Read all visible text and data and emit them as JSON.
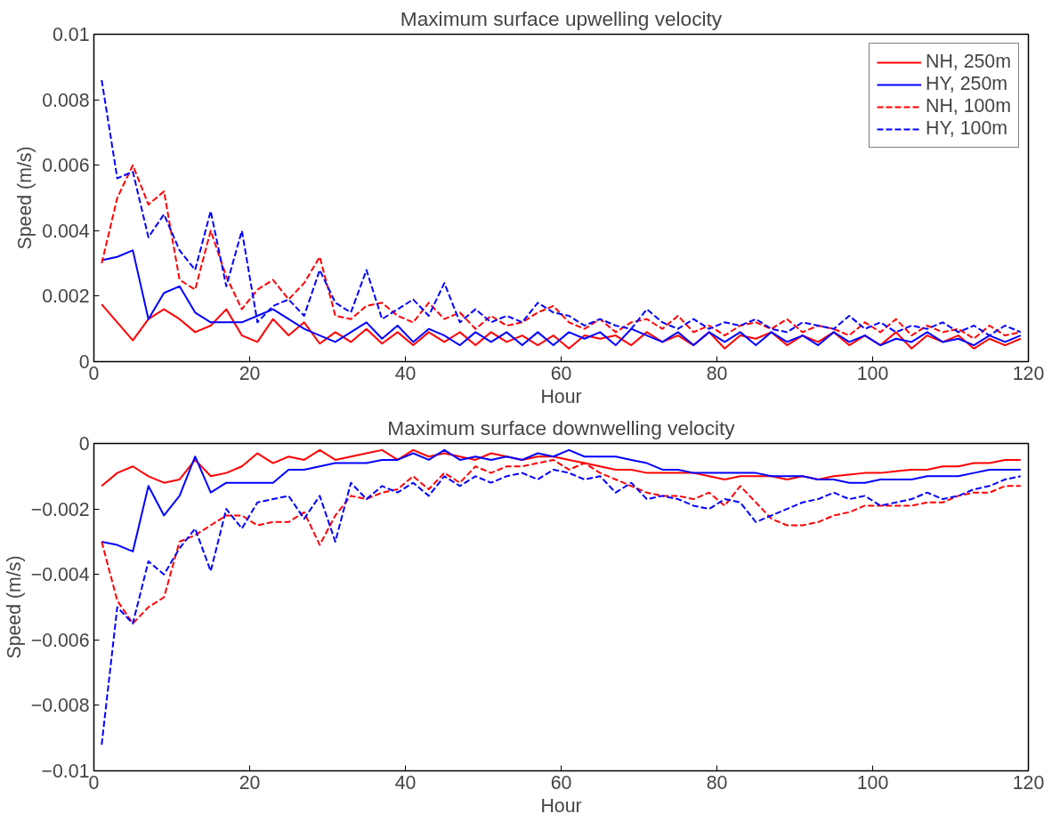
{
  "chart_data": [
    {
      "type": "line",
      "title": "Maximum surface upwelling velocity",
      "xlabel": "Hour",
      "ylabel": "Speed (m/s)",
      "x": [
        1,
        3,
        5,
        7,
        9,
        11,
        13,
        15,
        17,
        19,
        21,
        23,
        25,
        27,
        29,
        31,
        33,
        35,
        37,
        39,
        41,
        43,
        45,
        47,
        49,
        51,
        53,
        55,
        57,
        59,
        61,
        63,
        65,
        67,
        69,
        71,
        73,
        75,
        77,
        79,
        81,
        83,
        85,
        87,
        89,
        91,
        93,
        95,
        97,
        99,
        101,
        103,
        105,
        107,
        109,
        111,
        113,
        115,
        117,
        119
      ],
      "xlim": [
        0,
        120
      ],
      "xticks": [
        0,
        20,
        40,
        60,
        80,
        100,
        120
      ],
      "ylim": [
        0,
        0.01
      ],
      "yticks": [
        0,
        0.002,
        0.004,
        0.006,
        0.008,
        0.01
      ],
      "grid": false,
      "legend": "top right",
      "series": [
        {
          "name": "NH, 250m",
          "color": "#ff0000",
          "line_style": "solid",
          "values": [
            0.00175,
            0.0012,
            0.00065,
            0.0013,
            0.0016,
            0.0013,
            0.0009,
            0.0011,
            0.0016,
            0.0008,
            0.0006,
            0.0013,
            0.0008,
            0.0012,
            0.00055,
            0.0009,
            0.0006,
            0.001,
            0.00055,
            0.0009,
            0.0005,
            0.0009,
            0.0006,
            0.0009,
            0.0005,
            0.0009,
            0.0006,
            0.0008,
            0.0005,
            0.0008,
            0.0004,
            0.0008,
            0.0007,
            0.0008,
            0.0005,
            0.0009,
            0.0006,
            0.0008,
            0.0005,
            0.0009,
            0.0004,
            0.0008,
            0.0007,
            0.0009,
            0.0005,
            0.0008,
            0.0006,
            0.0009,
            0.0005,
            0.0008,
            0.0005,
            0.0009,
            0.0004,
            0.0008,
            0.0006,
            0.0008,
            0.0004,
            0.0007,
            0.0005,
            0.0007
          ]
        },
        {
          "name": "HY, 250m",
          "color": "#0000ff",
          "line_style": "solid",
          "values": [
            0.0031,
            0.0032,
            0.0034,
            0.0013,
            0.0021,
            0.0023,
            0.0015,
            0.0012,
            0.0012,
            0.0012,
            0.0014,
            0.0016,
            0.0013,
            0.001,
            0.0008,
            0.0006,
            0.0009,
            0.0012,
            0.0007,
            0.0011,
            0.0006,
            0.001,
            0.0008,
            0.0005,
            0.0009,
            0.0006,
            0.0009,
            0.0005,
            0.0009,
            0.0005,
            0.0009,
            0.0007,
            0.0009,
            0.0005,
            0.001,
            0.0008,
            0.0006,
            0.0009,
            0.0005,
            0.0009,
            0.0006,
            0.0009,
            0.0005,
            0.0009,
            0.0006,
            0.0008,
            0.0005,
            0.0009,
            0.0006,
            0.0008,
            0.0005,
            0.0007,
            0.0006,
            0.0009,
            0.0006,
            0.0007,
            0.0005,
            0.0008,
            0.0006,
            0.0008
          ]
        },
        {
          "name": "NH, 100m",
          "color": "#ff0000",
          "line_style": "dashed",
          "values": [
            0.003,
            0.005,
            0.006,
            0.0048,
            0.0052,
            0.0025,
            0.0022,
            0.004,
            0.0026,
            0.0016,
            0.0022,
            0.0025,
            0.0019,
            0.0024,
            0.0032,
            0.0014,
            0.0013,
            0.0017,
            0.0018,
            0.0014,
            0.0012,
            0.0018,
            0.0013,
            0.0015,
            0.001,
            0.0014,
            0.0011,
            0.0012,
            0.0015,
            0.0017,
            0.0012,
            0.001,
            0.0013,
            0.0009,
            0.0012,
            0.0013,
            0.001,
            0.0014,
            0.0009,
            0.0011,
            0.0008,
            0.0011,
            0.0012,
            0.001,
            0.0013,
            0.0009,
            0.0011,
            0.001,
            0.0008,
            0.0012,
            0.0009,
            0.0013,
            0.0008,
            0.0011,
            0.0009,
            0.001,
            0.0007,
            0.0011,
            0.0008,
            0.0009
          ]
        },
        {
          "name": "HY, 100m",
          "color": "#0000ff",
          "line_style": "dashed",
          "values": [
            0.0086,
            0.0056,
            0.0058,
            0.0038,
            0.0045,
            0.0034,
            0.0028,
            0.0046,
            0.0023,
            0.004,
            0.0012,
            0.0017,
            0.0019,
            0.0014,
            0.0028,
            0.0018,
            0.0015,
            0.0028,
            0.0013,
            0.0016,
            0.0019,
            0.0014,
            0.0024,
            0.0012,
            0.0016,
            0.0012,
            0.0014,
            0.0012,
            0.0018,
            0.0015,
            0.0014,
            0.0011,
            0.0013,
            0.0011,
            0.001,
            0.0016,
            0.0012,
            0.001,
            0.0013,
            0.001,
            0.0012,
            0.0011,
            0.0013,
            0.001,
            0.0009,
            0.0012,
            0.0011,
            0.001,
            0.0014,
            0.001,
            0.0012,
            0.0009,
            0.0011,
            0.001,
            0.0012,
            0.0009,
            0.0011,
            0.0008,
            0.0011,
            0.0009
          ]
        }
      ]
    },
    {
      "type": "line",
      "title": "Maximum surface downwelling velocity",
      "xlabel": "Hour",
      "ylabel": "Speed (m/s)",
      "x": [
        1,
        3,
        5,
        7,
        9,
        11,
        13,
        15,
        17,
        19,
        21,
        23,
        25,
        27,
        29,
        31,
        33,
        35,
        37,
        39,
        41,
        43,
        45,
        47,
        49,
        51,
        53,
        55,
        57,
        59,
        61,
        63,
        65,
        67,
        69,
        71,
        73,
        75,
        77,
        79,
        81,
        83,
        85,
        87,
        89,
        91,
        93,
        95,
        97,
        99,
        101,
        103,
        105,
        107,
        109,
        111,
        113,
        115,
        117,
        119
      ],
      "xlim": [
        0,
        120
      ],
      "xticks": [
        0,
        20,
        40,
        60,
        80,
        100,
        120
      ],
      "ylim": [
        -0.01,
        0
      ],
      "yticks": [
        {
          "value": -0.01,
          "label": "−0.01"
        },
        {
          "value": -0.008,
          "label": "−0.008"
        },
        {
          "value": -0.006,
          "label": "−0.006"
        },
        {
          "value": -0.004,
          "label": "−0.004"
        },
        {
          "value": -0.002,
          "label": "−0.002"
        },
        0
      ],
      "grid": false,
      "series": [
        {
          "color": "#ff0000",
          "line_style": "solid",
          "values": [
            -0.0013,
            -0.0009,
            -0.0007,
            -0.001,
            -0.0012,
            -0.0011,
            -0.0005,
            -0.001,
            -0.0009,
            -0.0007,
            -0.0003,
            -0.0006,
            -0.0004,
            -0.0005,
            -0.0002,
            -0.0005,
            -0.0004,
            -0.0003,
            -0.0002,
            -0.0005,
            -0.0002,
            -0.0004,
            -0.0003,
            -0.0004,
            -0.0005,
            -0.0003,
            -0.0004,
            -0.0005,
            -0.0004,
            -0.0004,
            -0.0005,
            -0.0006,
            -0.0007,
            -0.0008,
            -0.0008,
            -0.0009,
            -0.0009,
            -0.0009,
            -0.0009,
            -0.001,
            -0.0011,
            -0.001,
            -0.001,
            -0.001,
            -0.0011,
            -0.001,
            -0.0011,
            -0.001,
            -0.00095,
            -0.0009,
            -0.0009,
            -0.00085,
            -0.0008,
            -0.0008,
            -0.0007,
            -0.0007,
            -0.0006,
            -0.0006,
            -0.0005,
            -0.0005
          ]
        },
        {
          "color": "#0000ff",
          "line_style": "solid",
          "values": [
            -0.003,
            -0.0031,
            -0.0033,
            -0.0013,
            -0.0022,
            -0.0016,
            -0.0004,
            -0.0015,
            -0.0012,
            -0.0012,
            -0.0012,
            -0.0012,
            -0.0008,
            -0.0008,
            -0.0007,
            -0.0006,
            -0.0006,
            -0.0006,
            -0.0005,
            -0.0005,
            -0.0003,
            -0.0005,
            -0.0002,
            -0.0005,
            -0.0004,
            -0.0005,
            -0.0004,
            -0.0005,
            -0.0003,
            -0.0004,
            -0.0002,
            -0.0004,
            -0.0004,
            -0.0004,
            -0.0005,
            -0.0006,
            -0.0008,
            -0.0008,
            -0.0009,
            -0.0009,
            -0.0009,
            -0.0009,
            -0.0009,
            -0.001,
            -0.001,
            -0.001,
            -0.0011,
            -0.0011,
            -0.0012,
            -0.0012,
            -0.0011,
            -0.0011,
            -0.0011,
            -0.001,
            -0.001,
            -0.001,
            -0.0009,
            -0.0008,
            -0.0008,
            -0.0008
          ]
        },
        {
          "color": "#ff0000",
          "line_style": "dashed",
          "values": [
            -0.003,
            -0.0048,
            -0.0055,
            -0.005,
            -0.0047,
            -0.003,
            -0.0028,
            -0.0025,
            -0.0022,
            -0.0022,
            -0.0025,
            -0.0024,
            -0.0024,
            -0.0021,
            -0.0031,
            -0.0022,
            -0.0016,
            -0.0017,
            -0.0015,
            -0.0014,
            -0.001,
            -0.0014,
            -0.0009,
            -0.0012,
            -0.0007,
            -0.0009,
            -0.0007,
            -0.0007,
            -0.0006,
            -0.0005,
            -0.0008,
            -0.0006,
            -0.0009,
            -0.0011,
            -0.0013,
            -0.0015,
            -0.0016,
            -0.0016,
            -0.0017,
            -0.0015,
            -0.0019,
            -0.0013,
            -0.0018,
            -0.0023,
            -0.0025,
            -0.0025,
            -0.0024,
            -0.0022,
            -0.0021,
            -0.0019,
            -0.0019,
            -0.0019,
            -0.0019,
            -0.0018,
            -0.0018,
            -0.0016,
            -0.0015,
            -0.0015,
            -0.0013,
            -0.0013
          ]
        },
        {
          "color": "#0000ff",
          "line_style": "dashed",
          "values": [
            -0.0092,
            -0.005,
            -0.0055,
            -0.0036,
            -0.004,
            -0.0032,
            -0.0026,
            -0.0039,
            -0.002,
            -0.0026,
            -0.0018,
            -0.0017,
            -0.0016,
            -0.0023,
            -0.0016,
            -0.003,
            -0.0012,
            -0.0017,
            -0.0013,
            -0.0015,
            -0.0012,
            -0.0016,
            -0.001,
            -0.0013,
            -0.001,
            -0.0012,
            -0.001,
            -0.0009,
            -0.0011,
            -0.0008,
            -0.0009,
            -0.0011,
            -0.001,
            -0.0015,
            -0.0012,
            -0.0017,
            -0.0016,
            -0.0017,
            -0.0019,
            -0.002,
            -0.0017,
            -0.0018,
            -0.0024,
            -0.0022,
            -0.002,
            -0.0018,
            -0.0017,
            -0.0015,
            -0.0017,
            -0.0016,
            -0.0019,
            -0.0018,
            -0.0017,
            -0.0015,
            -0.0017,
            -0.0016,
            -0.0014,
            -0.0013,
            -0.0011,
            -0.001
          ]
        }
      ]
    }
  ]
}
